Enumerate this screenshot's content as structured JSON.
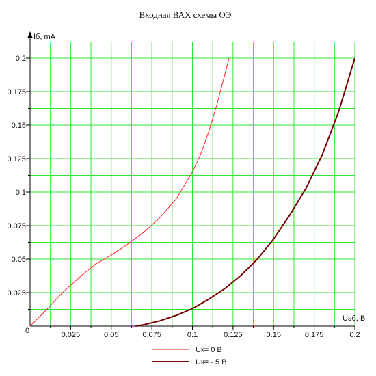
{
  "chart_data": {
    "type": "line",
    "title": "Входная ВАХ схемы ОЭ",
    "xlabel": "Uэб, В",
    "ylabel": "Iб, mA",
    "xlim": [
      0,
      0.2
    ],
    "ylim": [
      0,
      0.2
    ],
    "origin_label": "0",
    "x_ticks": [
      0.025,
      0.05,
      0.075,
      0.1,
      0.125,
      0.15,
      0.175,
      0.2
    ],
    "x_tick_labels": [
      "0.025",
      "0.05",
      "0.075",
      "0.1",
      "0.125",
      "0.15",
      "0.175",
      "0.2"
    ],
    "y_ticks": [
      0.025,
      0.05,
      0.075,
      0.1,
      0.125,
      0.15,
      0.175,
      0.2
    ],
    "y_tick_labels": [
      "0.025",
      "0.05",
      "0.075",
      "0.1",
      "0.125",
      "0.15",
      "0.175",
      "0.2"
    ],
    "grid": true,
    "grid_color": "#2ee62e",
    "legend_position": "bottom-center",
    "series": [
      {
        "name": "Uк= 0 В",
        "color": "#ff2020",
        "x": [
          0,
          0.01,
          0.02,
          0.03,
          0.04,
          0.05,
          0.06,
          0.07,
          0.08,
          0.09,
          0.1,
          0.105,
          0.11,
          0.115,
          0.12,
          0.1225
        ],
        "y": [
          0,
          0.012,
          0.025,
          0.036,
          0.046,
          0.053,
          0.061,
          0.07,
          0.081,
          0.095,
          0.115,
          0.128,
          0.145,
          0.165,
          0.188,
          0.2
        ]
      },
      {
        "name": "Uк= - 5 В",
        "color": "#7a0000",
        "x": [
          0.065,
          0.07,
          0.08,
          0.09,
          0.1,
          0.11,
          0.12,
          0.13,
          0.14,
          0.15,
          0.16,
          0.17,
          0.18,
          0.19,
          0.2
        ],
        "y": [
          0,
          0.001,
          0.004,
          0.008,
          0.013,
          0.02,
          0.028,
          0.038,
          0.05,
          0.065,
          0.083,
          0.103,
          0.128,
          0.16,
          0.2
        ]
      }
    ]
  }
}
